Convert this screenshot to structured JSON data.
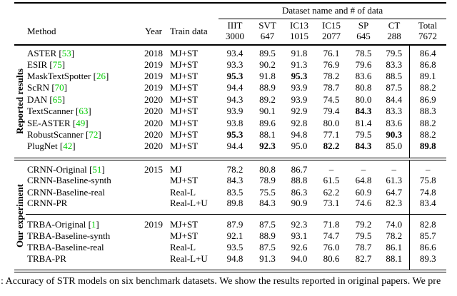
{
  "colors": {
    "citation": "#00cc00"
  },
  "table": {
    "group_header": "Dataset name and # of data",
    "col_headers": {
      "method": "Method",
      "year": "Year",
      "train": "Train data"
    },
    "datasets": [
      {
        "name": "IIIT",
        "count": "3000"
      },
      {
        "name": "SVT",
        "count": "647"
      },
      {
        "name": "IC13",
        "count": "1015"
      },
      {
        "name": "IC15",
        "count": "2077"
      },
      {
        "name": "SP",
        "count": "645"
      },
      {
        "name": "CT",
        "count": "288"
      },
      {
        "name": "Total",
        "count": "7672"
      }
    ],
    "reported": {
      "label": "Reported results",
      "rows": [
        {
          "method": "ASTER",
          "cite": "53",
          "year": "2018",
          "train": "MJ+ST",
          "v": [
            "93.4",
            "89.5",
            "91.8",
            "76.1",
            "78.5",
            "79.5",
            "86.4"
          ],
          "bold": []
        },
        {
          "method": "ESIR",
          "cite": "75",
          "year": "2019",
          "train": "MJ+ST",
          "v": [
            "93.3",
            "90.2",
            "91.3",
            "76.9",
            "79.6",
            "83.3",
            "86.8"
          ],
          "bold": []
        },
        {
          "method": "MaskTextSpotter",
          "cite": "26",
          "year": "2019",
          "train": "MJ+ST",
          "v": [
            "95.3",
            "91.8",
            "95.3",
            "78.2",
            "83.6",
            "88.5",
            "89.1"
          ],
          "bold": [
            0,
            2
          ]
        },
        {
          "method": "ScRN",
          "cite": "70",
          "year": "2019",
          "train": "MJ+ST",
          "v": [
            "94.4",
            "88.9",
            "93.9",
            "78.7",
            "80.8",
            "87.5",
            "88.2"
          ],
          "bold": []
        },
        {
          "method": "DAN",
          "cite": "65",
          "year": "2020",
          "train": "MJ+ST",
          "v": [
            "94.3",
            "89.2",
            "93.9",
            "74.5",
            "80.0",
            "84.4",
            "86.9"
          ],
          "bold": []
        },
        {
          "method": "TextScanner",
          "cite": "63",
          "year": "2020",
          "train": "MJ+ST",
          "v": [
            "93.9",
            "90.1",
            "92.9",
            "79.4",
            "84.3",
            "83.3",
            "88.3"
          ],
          "bold": [
            4
          ]
        },
        {
          "method": "SE-ASTER",
          "cite": "49",
          "year": "2020",
          "train": "MJ+ST",
          "v": [
            "93.8",
            "89.6",
            "92.8",
            "80.0",
            "81.4",
            "83.6",
            "88.2"
          ],
          "bold": []
        },
        {
          "method": "RobustScanner",
          "cite": "72",
          "year": "2020",
          "train": "MJ+ST",
          "v": [
            "95.3",
            "88.1",
            "94.8",
            "77.1",
            "79.5",
            "90.3",
            "88.2"
          ],
          "bold": [
            0,
            5
          ]
        },
        {
          "method": "PlugNet",
          "cite": "42",
          "year": "2020",
          "train": "MJ+ST",
          "v": [
            "94.4",
            "92.3",
            "95.0",
            "82.2",
            "84.3",
            "85.0",
            "89.8"
          ],
          "bold": [
            1,
            3,
            4,
            6
          ]
        }
      ]
    },
    "ours": {
      "label": "Our experiment",
      "rows": [
        {
          "method": "CRNN-Original",
          "cite": "51",
          "year": "2015",
          "train": "MJ",
          "v": [
            "78.2",
            "80.8",
            "86.7",
            "–",
            "–",
            "–",
            "–"
          ],
          "bold": []
        },
        {
          "method": "CRNN-Baseline-synth",
          "cite": "",
          "year": "",
          "train": "MJ+ST",
          "v": [
            "84.3",
            "78.9",
            "88.8",
            "61.5",
            "64.8",
            "61.3",
            "75.8"
          ],
          "bold": []
        },
        {
          "method": "CRNN-Baseline-real",
          "cite": "",
          "year": "",
          "train": "Real-L",
          "v": [
            "83.5",
            "75.5",
            "86.3",
            "62.2",
            "60.9",
            "64.7",
            "74.8"
          ],
          "bold": []
        },
        {
          "method": "CRNN-PR",
          "cite": "",
          "year": "",
          "train": "Real-L+U",
          "v": [
            "89.8",
            "84.3",
            "90.9",
            "73.1",
            "74.6",
            "82.3",
            "83.4"
          ],
          "bold": []
        },
        {
          "method": "TRBA-Original",
          "cite": "1",
          "year": "2019",
          "train": "MJ+ST",
          "v": [
            "87.9",
            "87.5",
            "92.3",
            "71.8",
            "79.2",
            "74.0",
            "82.8"
          ],
          "bold": []
        },
        {
          "method": "TRBA-Baseline-synth",
          "cite": "",
          "year": "",
          "train": "MJ+ST",
          "v": [
            "92.1",
            "88.9",
            "93.1",
            "74.7",
            "79.5",
            "78.2",
            "85.7"
          ],
          "bold": []
        },
        {
          "method": "TRBA-Baseline-real",
          "cite": "",
          "year": "",
          "train": "Real-L",
          "v": [
            "93.5",
            "87.5",
            "92.6",
            "76.0",
            "78.7",
            "86.1",
            "86.6"
          ],
          "bold": []
        },
        {
          "method": "TRBA-PR",
          "cite": "",
          "year": "",
          "train": "Real-L+U",
          "v": [
            "94.8",
            "91.3",
            "94.0",
            "80.6",
            "82.7",
            "88.1",
            "89.3"
          ],
          "bold": []
        }
      ]
    }
  },
  "caption": ": Accuracy of STR models on six benchmark datasets. We show the results reported in original papers. We pre"
}
